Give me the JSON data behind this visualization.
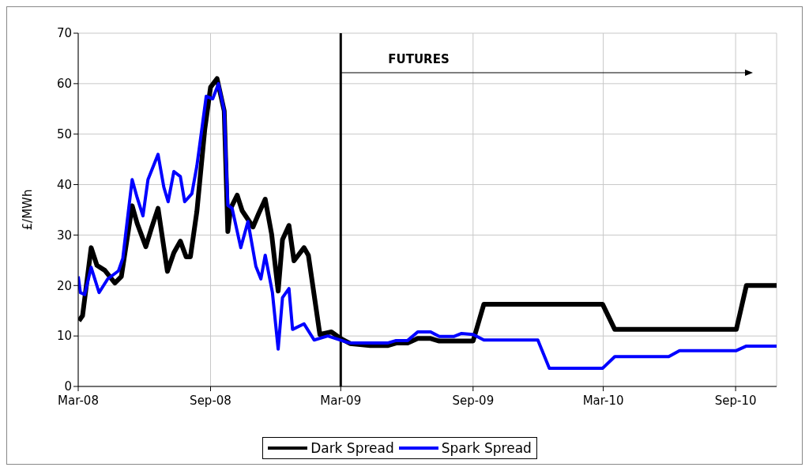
{
  "chart_data": {
    "type": "line",
    "ylabel": "£/MWh",
    "xlim": [
      "2008-03-01",
      "2010-10-28"
    ],
    "xticks": [
      {
        "value": "2008-03-01",
        "label": "Mar-08"
      },
      {
        "value": "2008-09-01",
        "label": "Sep-08"
      },
      {
        "value": "2009-03-01",
        "label": "Mar-09"
      },
      {
        "value": "2009-09-01",
        "label": "Sep-09"
      },
      {
        "value": "2010-03-01",
        "label": "Mar-10"
      },
      {
        "value": "2010-09-01",
        "label": "Sep-10"
      }
    ],
    "ylim": [
      0,
      70
    ],
    "yticks": [
      0,
      10,
      20,
      30,
      40,
      50,
      60,
      70
    ],
    "grid": true,
    "legend": "bottom",
    "marker": "none",
    "line_style": "solid",
    "ref_lines": [
      {
        "axis": "x",
        "value": "2009-03-01",
        "color": "#000000"
      }
    ],
    "annotations": [
      "FUTURES"
    ],
    "series": [
      {
        "name": "Dark Spread",
        "color": "#000000",
        "x": [
          "2008-03-02",
          "2008-03-07",
          "2008-03-19",
          "2008-03-27",
          "2008-04-07",
          "2008-04-21",
          "2008-04-30",
          "2008-05-15",
          "2008-05-22",
          "2008-06-03",
          "2008-06-11",
          "2008-06-20",
          "2008-07-03",
          "2008-07-12",
          "2008-07-21",
          "2008-07-29",
          "2008-08-04",
          "2008-08-13",
          "2008-08-24",
          "2008-09-01",
          "2008-09-10",
          "2008-09-20",
          "2008-09-25",
          "2008-09-29",
          "2008-10-08",
          "2008-10-15",
          "2008-10-30",
          "2008-11-07",
          "2008-11-16",
          "2008-11-25",
          "2008-12-04",
          "2008-12-10",
          "2008-12-19",
          "2008-12-26",
          "2009-01-09",
          "2009-01-15",
          "2009-01-31",
          "2009-02-16",
          "2009-03-01",
          "2009-03-14",
          "2009-04-11",
          "2009-05-05",
          "2009-05-17",
          "2009-06-02",
          "2009-06-16",
          "2009-07-04",
          "2009-07-16",
          "2009-09-01",
          "2009-09-16",
          "2010-02-28",
          "2010-03-17",
          "2010-09-02",
          "2010-09-16",
          "2010-10-28"
        ],
        "values": [
          13,
          14,
          27.5,
          24,
          23,
          20.5,
          21.8,
          35.8,
          32.3,
          27.7,
          31.4,
          35.3,
          22.8,
          26.5,
          28.8,
          25.7,
          25.7,
          34.7,
          51,
          59.3,
          61,
          54.6,
          30.7,
          35.3,
          37.9,
          34.8,
          31.6,
          34.3,
          37.1,
          30.1,
          18.9,
          29.1,
          31.9,
          24.9,
          27.5,
          26,
          10.3,
          10.8,
          9.5,
          8.5,
          8.1,
          8.1,
          8.6,
          8.6,
          9.5,
          9.5,
          9,
          9,
          16.3,
          16.3,
          11.3,
          11.3,
          20,
          20
        ]
      },
      {
        "name": "Spark Spread",
        "color": "#0000ff",
        "x": [
          "2008-03-01",
          "2008-03-04",
          "2008-03-10",
          "2008-03-19",
          "2008-03-30",
          "2008-04-11",
          "2008-04-26",
          "2008-05-02",
          "2008-05-15",
          "2008-05-22",
          "2008-05-30",
          "2008-06-06",
          "2008-06-20",
          "2008-06-28",
          "2008-07-04",
          "2008-07-12",
          "2008-07-21",
          "2008-07-27",
          "2008-08-06",
          "2008-08-13",
          "2008-08-26",
          "2008-09-04",
          "2008-09-12",
          "2008-09-20",
          "2008-09-25",
          "2008-10-01",
          "2008-10-13",
          "2008-10-23",
          "2008-11-03",
          "2008-11-10",
          "2008-11-16",
          "2008-11-26",
          "2008-12-04",
          "2008-12-10",
          "2008-12-19",
          "2008-12-24",
          "2009-01-09",
          "2009-01-23",
          "2009-02-11",
          "2009-03-09",
          "2009-03-14",
          "2009-05-05",
          "2009-05-17",
          "2009-06-02",
          "2009-06-16",
          "2009-07-04",
          "2009-07-16",
          "2009-08-05",
          "2009-08-16",
          "2009-09-01",
          "2009-09-16",
          "2009-11-30",
          "2009-12-16",
          "2010-02-28",
          "2010-03-17",
          "2010-05-31",
          "2010-06-15",
          "2010-09-02",
          "2010-09-16",
          "2010-10-28"
        ],
        "values": [
          21.8,
          18.6,
          18.2,
          23.6,
          18.6,
          21.3,
          22.9,
          25.4,
          41,
          37.4,
          33.8,
          41,
          46,
          39.5,
          36.6,
          42.6,
          41.6,
          36.6,
          38.2,
          43.7,
          57.5,
          57,
          60,
          54.6,
          35.9,
          35.3,
          27.5,
          32.7,
          23.8,
          21.3,
          26,
          18.6,
          7.4,
          17.6,
          19.4,
          11.3,
          12.4,
          9.2,
          10,
          8.8,
          8.6,
          8.6,
          9.1,
          9.1,
          10.8,
          10.8,
          9.9,
          9.9,
          10.5,
          10.3,
          9.2,
          9.2,
          3.6,
          3.6,
          5.9,
          5.9,
          7.1,
          7.1,
          8,
          8
        ]
      }
    ]
  }
}
